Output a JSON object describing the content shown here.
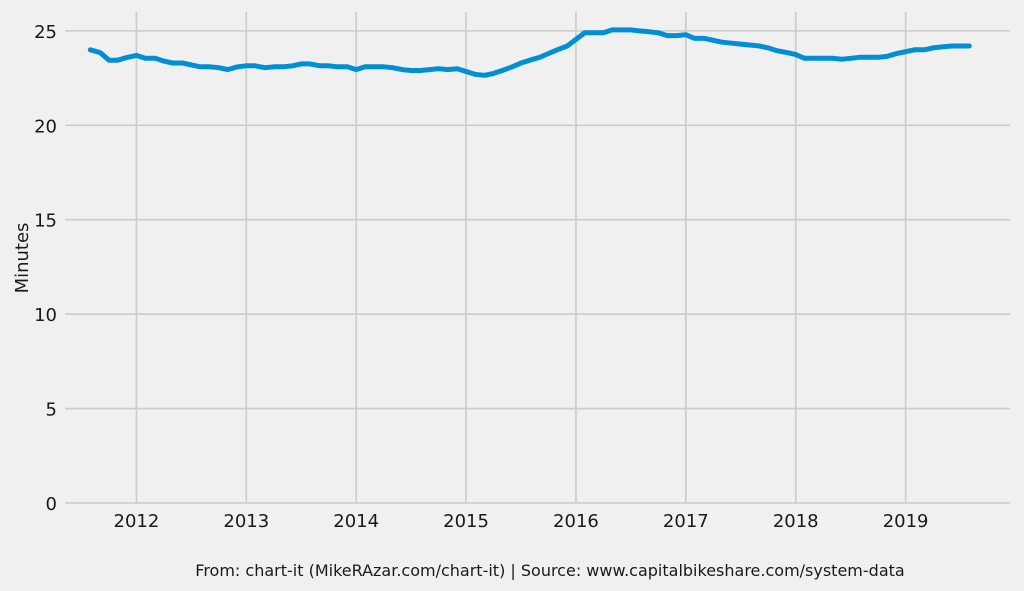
{
  "chart_data": {
    "type": "line",
    "title": "",
    "xlabel": "",
    "ylabel": "Minutes",
    "xlim": [
      2011.35,
      2019.95
    ],
    "ylim": [
      0,
      26
    ],
    "yticks": [
      0,
      5,
      10,
      15,
      20,
      25
    ],
    "xticks": [
      2012,
      2013,
      2014,
      2015,
      2016,
      2017,
      2018,
      2019
    ],
    "grid": true,
    "legend": "none",
    "series_color": "#008fd5",
    "series": [
      {
        "x": [
          2011.58,
          2011.67,
          2011.75,
          2011.83,
          2011.92,
          2012.0,
          2012.08,
          2012.17,
          2012.25,
          2012.33,
          2012.42,
          2012.5,
          2012.58,
          2012.67,
          2012.75,
          2012.83,
          2012.92,
          2013.0,
          2013.08,
          2013.17,
          2013.25,
          2013.33,
          2013.42,
          2013.5,
          2013.58,
          2013.67,
          2013.75,
          2013.83,
          2013.92,
          2014.0,
          2014.08,
          2014.17,
          2014.25,
          2014.33,
          2014.42,
          2014.5,
          2014.58,
          2014.67,
          2014.75,
          2014.83,
          2014.92,
          2015.0,
          2015.08,
          2015.17,
          2015.25,
          2015.33,
          2015.42,
          2015.5,
          2015.58,
          2015.67,
          2015.75,
          2015.83,
          2015.92,
          2016.0,
          2016.08,
          2016.17,
          2016.25,
          2016.33,
          2016.42,
          2016.5,
          2016.58,
          2016.67,
          2016.75,
          2016.83,
          2016.92,
          2017.0,
          2017.08,
          2017.17,
          2017.25,
          2017.33,
          2017.42,
          2017.5,
          2017.58,
          2017.67,
          2017.75,
          2017.83,
          2017.92,
          2018.0,
          2018.08,
          2018.17,
          2018.25,
          2018.33,
          2018.42,
          2018.5,
          2018.58,
          2018.67,
          2018.75,
          2018.83,
          2018.92,
          2019.0,
          2019.08,
          2019.17,
          2019.25,
          2019.33,
          2019.42,
          2019.5,
          2019.58
        ],
        "values": [
          24.0,
          23.85,
          23.45,
          23.45,
          23.6,
          23.7,
          23.55,
          23.55,
          23.4,
          23.3,
          23.3,
          23.2,
          23.1,
          23.1,
          23.05,
          22.95,
          23.1,
          23.15,
          23.15,
          23.05,
          23.1,
          23.1,
          23.15,
          23.25,
          23.25,
          23.15,
          23.15,
          23.1,
          23.1,
          22.95,
          23.1,
          23.1,
          23.1,
          23.05,
          22.95,
          22.9,
          22.9,
          22.95,
          23.0,
          22.95,
          23.0,
          22.85,
          22.7,
          22.65,
          22.75,
          22.9,
          23.1,
          23.3,
          23.45,
          23.6,
          23.8,
          24.0,
          24.2,
          24.55,
          24.9,
          24.9,
          24.9,
          25.05,
          25.05,
          25.05,
          25.0,
          24.95,
          24.9,
          24.75,
          24.75,
          24.8,
          24.6,
          24.6,
          24.5,
          24.4,
          24.35,
          24.3,
          24.25,
          24.2,
          24.1,
          23.95,
          23.85,
          23.75,
          23.55,
          23.55,
          23.55,
          23.55,
          23.5,
          23.55,
          23.6,
          23.6,
          23.6,
          23.65,
          23.8,
          23.9,
          24.0,
          24.0,
          24.1,
          24.15,
          24.2,
          24.2,
          24.2
        ]
      }
    ]
  },
  "caption": "From: chart-it (MikeRAzar.com/chart-it) | Source: www.capitalbikeshare.com/system-data"
}
